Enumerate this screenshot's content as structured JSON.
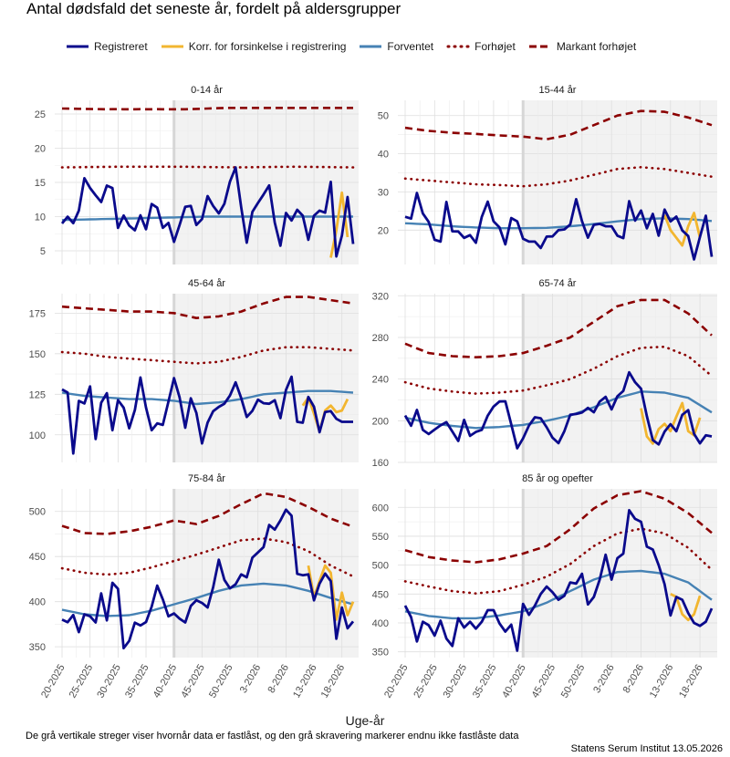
{
  "figure": {
    "title": "Antal dødsfald det seneste år, fordelt på aldersgrupper",
    "xlabel": "Uge-år",
    "caption": "De grå vertikale streger viser hvornår data er fastlåst, og den grå skravering markerer endnu ikke fastlåste data",
    "credit": "Statens Serum Institut  13.05.2026"
  },
  "legend": [
    {
      "key": "registered",
      "label": "Registreret",
      "color": "#0a0a8c",
      "style": "solid"
    },
    {
      "key": "corrected",
      "label": "Korr. for forsinkelse i registrering",
      "color": "#f2b630",
      "style": "solid"
    },
    {
      "key": "expected",
      "label": "Forventet",
      "color": "#4682b4",
      "style": "solid"
    },
    {
      "key": "elevated",
      "label": "Forhøjet",
      "color": "#8b0000",
      "style": "dotted"
    },
    {
      "key": "marked",
      "label": "Markant forhøjet",
      "color": "#8b0000",
      "style": "dashed"
    }
  ],
  "chart_data": {
    "type": "line",
    "x_tick_labels": [
      "20-2025",
      "25-2025",
      "30-2025",
      "35-2025",
      "40-2025",
      "45-2025",
      "50-2025",
      "3-2026",
      "8-2026",
      "13-2026",
      "18-2026"
    ],
    "locked_until_index": 20,
    "panels": [
      {
        "facet": "0-14 år",
        "yticks": [
          5,
          10,
          15,
          20,
          25
        ],
        "ylim": [
          3,
          27
        ],
        "registered": [
          9,
          10,
          9,
          11,
          16,
          14,
          13,
          12,
          15,
          14,
          7,
          11,
          8,
          8,
          11,
          7,
          14,
          10,
          7.5,
          10,
          4,
          12,
          11,
          12,
          6,
          13,
          13,
          10,
          11,
          13,
          18,
          16,
          4,
          10,
          12,
          12,
          16,
          11,
          4,
          11,
          9,
          11,
          11,
          6,
          10,
          11,
          10,
          16,
          4,
          7,
          13,
          6
        ],
        "corrected_start": 48,
        "corrected": [
          4,
          8,
          13.5,
          7
        ],
        "expected": {
          "start": 9.5,
          "end": 10.0,
          "mid": 10.0
        },
        "elevated": {
          "values": [
            17.2,
            17.3,
            17.3,
            17.2,
            17.3,
            17.2
          ]
        },
        "marked": {
          "values": [
            25.8,
            25.7,
            25.7,
            25.7,
            25.9,
            25.9,
            25.9,
            25.9
          ]
        }
      },
      {
        "facet": "15-44 år",
        "yticks": [
          20,
          30,
          40,
          50
        ],
        "ylim": [
          11,
          54
        ],
        "registered": [
          23.5,
          23,
          30,
          24,
          22,
          17,
          17,
          29,
          18,
          20,
          17.5,
          19,
          16,
          26,
          28,
          20,
          21,
          14,
          28,
          19,
          17,
          17,
          17,
          14,
          22,
          15,
          25,
          15,
          29,
          27,
          16,
          21,
          22,
          21,
          21,
          21,
          13,
          30,
          21,
          27,
          19,
          26,
          17,
          26,
          22,
          24,
          20,
          19,
          12,
          18,
          24,
          13
        ],
        "corrected_start": 44,
        "corrected": [
          24,
          20,
          18,
          16,
          21,
          24.5,
          18
        ],
        "expected": {
          "values": [
            21.8,
            21.5,
            21.0,
            20.7,
            20.5,
            20.5,
            20.6,
            21.0,
            21.6,
            22.3,
            22.9,
            23.1,
            22.9,
            22.4
          ]
        },
        "elevated": {
          "values": [
            33.5,
            33,
            32.5,
            32,
            31.8,
            31.5,
            32,
            33,
            34.5,
            36,
            36.5,
            36,
            35,
            34
          ]
        },
        "marked": {
          "values": [
            46.8,
            46,
            45.5,
            45.2,
            44.8,
            44.5,
            43.8,
            45,
            47.5,
            50,
            51.2,
            51,
            49.5,
            47.5
          ]
        }
      },
      {
        "facet": "45-64 år",
        "yticks": [
          100,
          125,
          150,
          175
        ],
        "ylim": [
          83,
          187
        ],
        "registered": [
          128,
          126,
          87,
          123,
          119,
          131,
          93,
          124,
          126,
          98,
          127,
          114,
          101,
          120,
          141,
          107,
          101,
          110,
          104,
          130,
          138,
          113,
          98,
          142,
          89,
          100,
          115,
          114,
          121,
          117,
          134,
          130,
          111,
          111,
          122,
          121,
          116,
          127,
          106,
          123,
          143,
          109,
          104,
          124,
          120,
          100,
          114,
          115,
          110,
          108,
          108,
          108
        ],
        "corrected_start": 43,
        "corrected": [
          118,
          123,
          113,
          102,
          115,
          118,
          114,
          115,
          122
        ],
        "expected": {
          "values": [
            126,
            124,
            123,
            122,
            122,
            121,
            119,
            120,
            122,
            125,
            126,
            127,
            127,
            126
          ]
        },
        "elevated": {
          "values": [
            151,
            150,
            148,
            147,
            146,
            145,
            144,
            145,
            148,
            152,
            154,
            154,
            153,
            152
          ]
        },
        "marked": {
          "values": [
            179,
            178,
            177,
            176,
            176,
            175,
            172,
            173,
            176,
            181,
            185,
            185,
            183,
            181
          ]
        }
      },
      {
        "facet": "65-74 år",
        "yticks": [
          160,
          200,
          240,
          280,
          320
        ],
        "ylim": [
          160,
          322
        ],
        "registered": [
          205,
          195,
          211,
          190,
          187,
          192,
          196,
          199,
          188,
          179,
          206,
          180,
          192,
          191,
          210,
          215,
          220,
          218,
          185,
          167,
          193,
          197,
          208,
          198,
          190,
          178,
          179,
          202,
          210,
          202,
          216,
          207,
          210,
          233,
          204,
          225,
          220,
          250,
          237,
          237,
          210,
          183,
          175,
          188,
          198,
          188,
          205,
          212,
          188,
          178,
          186,
          185
        ],
        "corrected_start": 40,
        "corrected": [
          212,
          185,
          178,
          192,
          197,
          190,
          204,
          217,
          190,
          186,
          203
        ],
        "expected": {
          "values": [
            203,
            198,
            195,
            193,
            194,
            196,
            200,
            205,
            213,
            222,
            228,
            227,
            222,
            208
          ]
        },
        "elevated": {
          "values": [
            237,
            231,
            228,
            226,
            227,
            229,
            234,
            240,
            250,
            262,
            270,
            271,
            262,
            243
          ]
        },
        "marked": {
          "values": [
            274,
            265,
            262,
            261,
            262,
            265,
            272,
            280,
            295,
            310,
            316,
            316,
            303,
            282
          ]
        }
      },
      {
        "facet": "75-84 år",
        "yticks": [
          350,
          400,
          450,
          500
        ],
        "ylim": [
          338,
          525
        ],
        "registered": [
          380,
          377,
          386,
          365,
          386,
          385,
          372,
          415,
          372,
          419,
          430,
          348,
          350,
          378,
          373,
          375,
          383,
          420,
          413,
          383,
          385,
          390,
          368,
          389,
          403,
          400,
          397,
          390,
          440,
          452,
          402,
          424,
          416,
          439,
          420,
          464,
          450,
          465,
          493,
          475,
          495,
          504,
          493,
          416,
          432,
          430,
          397,
          423,
          432,
          422,
          355,
          395,
          370,
          378
        ],
        "corrected_start": 44,
        "corrected": [
          440,
          405,
          423,
          440,
          432,
          380,
          410,
          385,
          400
        ],
        "expected": {
          "values": [
            391,
            386,
            384,
            385,
            390,
            397,
            404,
            412,
            418,
            420,
            418,
            412,
            404,
            397
          ]
        },
        "elevated": {
          "values": [
            437,
            432,
            430,
            432,
            438,
            445,
            452,
            460,
            468,
            470,
            466,
            456,
            440,
            428
          ]
        },
        "marked": {
          "values": [
            484,
            476,
            475,
            478,
            483,
            490,
            486,
            495,
            508,
            520,
            516,
            505,
            492,
            483
          ]
        }
      },
      {
        "facet": "85 år og opefter",
        "yticks": [
          350,
          400,
          450,
          500,
          550,
          600
        ],
        "ylim": [
          340,
          632
        ],
        "registered": [
          430,
          410,
          368,
          402,
          396,
          378,
          404,
          373,
          360,
          408,
          392,
          402,
          390,
          402,
          422,
          422,
          399,
          385,
          397,
          352,
          433,
          414,
          430,
          450,
          463,
          453,
          440,
          447,
          470,
          468,
          485,
          432,
          445,
          475,
          518,
          475,
          512,
          520,
          595,
          580,
          575,
          532,
          527,
          500,
          467,
          413,
          445,
          440,
          417,
          400,
          395,
          402,
          425
        ],
        "corrected_start": 45,
        "corrected": [
          450,
          445,
          415,
          405,
          415,
          447
        ],
        "expected": {
          "values": [
            420,
            412,
            408,
            408,
            413,
            420,
            435,
            455,
            475,
            488,
            490,
            485,
            470,
            440
          ]
        },
        "elevated": {
          "values": [
            472,
            463,
            455,
            451,
            455,
            466,
            480,
            502,
            533,
            555,
            563,
            555,
            530,
            492
          ]
        },
        "marked": {
          "values": [
            526,
            514,
            508,
            505,
            510,
            520,
            533,
            562,
            598,
            621,
            628,
            615,
            590,
            556
          ]
        }
      }
    ]
  }
}
